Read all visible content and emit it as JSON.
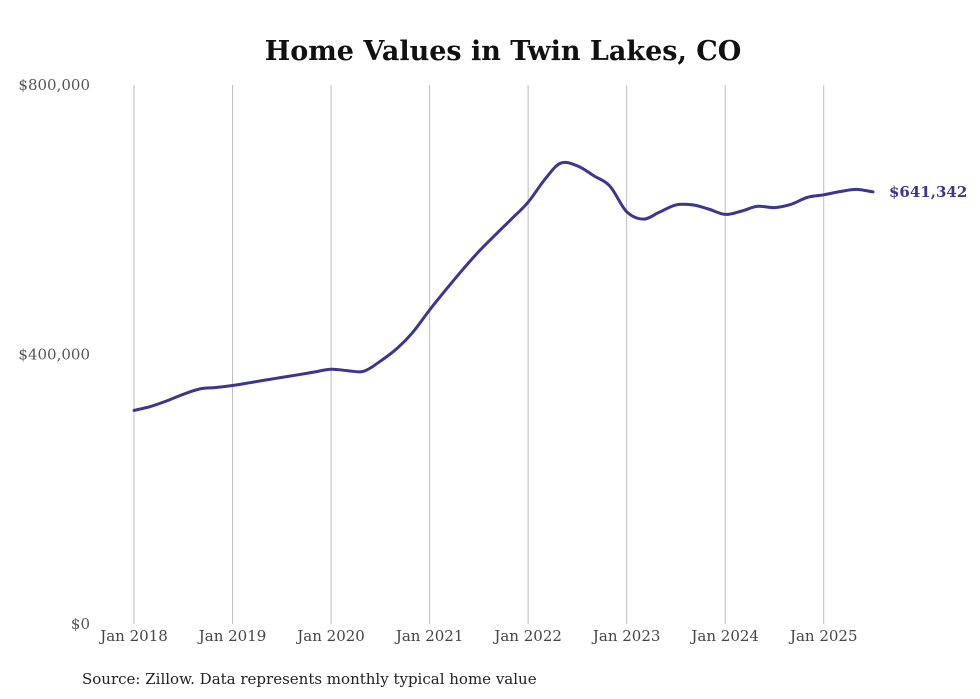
{
  "chart_data": {
    "type": "line",
    "title": "Home Values in Twin Lakes, CO",
    "source": "Source: Zillow. Data represents monthly typical home value",
    "ylim": [
      0,
      800000
    ],
    "y_ticks": [
      {
        "value": 0,
        "label": "$0"
      },
      {
        "value": 400000,
        "label": "$400,000"
      },
      {
        "value": 800000,
        "label": "$800,000"
      }
    ],
    "x_ticks": [
      {
        "value": 2018,
        "label": "Jan 2018"
      },
      {
        "value": 2019,
        "label": "Jan 2019"
      },
      {
        "value": 2020,
        "label": "Jan 2020"
      },
      {
        "value": 2021,
        "label": "Jan 2021"
      },
      {
        "value": 2022,
        "label": "Jan 2022"
      },
      {
        "value": 2023,
        "label": "Jan 2023"
      },
      {
        "value": 2024,
        "label": "Jan 2024"
      },
      {
        "value": 2025,
        "label": "Jan 2025"
      }
    ],
    "xlim": [
      2018,
      2025.5
    ],
    "grid": "vertical",
    "line_color": "#3c3591",
    "end_label": "$641,342",
    "series": [
      {
        "x": [
          2018.0,
          2018.17,
          2018.33,
          2018.5,
          2018.67,
          2018.83,
          2019.0,
          2019.17,
          2019.33,
          2019.5,
          2019.67,
          2019.83,
          2020.0,
          2020.17,
          2020.33,
          2020.5,
          2020.67,
          2020.83,
          2021.0,
          2021.17,
          2021.33,
          2021.5,
          2021.67,
          2021.83,
          2022.0,
          2022.17,
          2022.33,
          2022.5,
          2022.67,
          2022.83,
          2023.0,
          2023.17,
          2023.33,
          2023.5,
          2023.67,
          2023.83,
          2024.0,
          2024.17,
          2024.33,
          2024.5,
          2024.67,
          2024.83,
          2025.0,
          2025.17,
          2025.33,
          2025.5
        ],
        "y": [
          317000,
          323000,
          331000,
          341000,
          349000,
          351000,
          354000,
          358000,
          362000,
          366000,
          370000,
          374000,
          378000,
          376000,
          375000,
          390000,
          409000,
          433000,
          466000,
          497000,
          525000,
          553000,
          578000,
          601000,
          626000,
          660000,
          684000,
          680000,
          665000,
          650000,
          612000,
          601000,
          611000,
          622000,
          622000,
          616000,
          608000,
          613000,
          620000,
          618000,
          623000,
          633000,
          637000,
          642000,
          645000,
          641342
        ]
      }
    ]
  }
}
